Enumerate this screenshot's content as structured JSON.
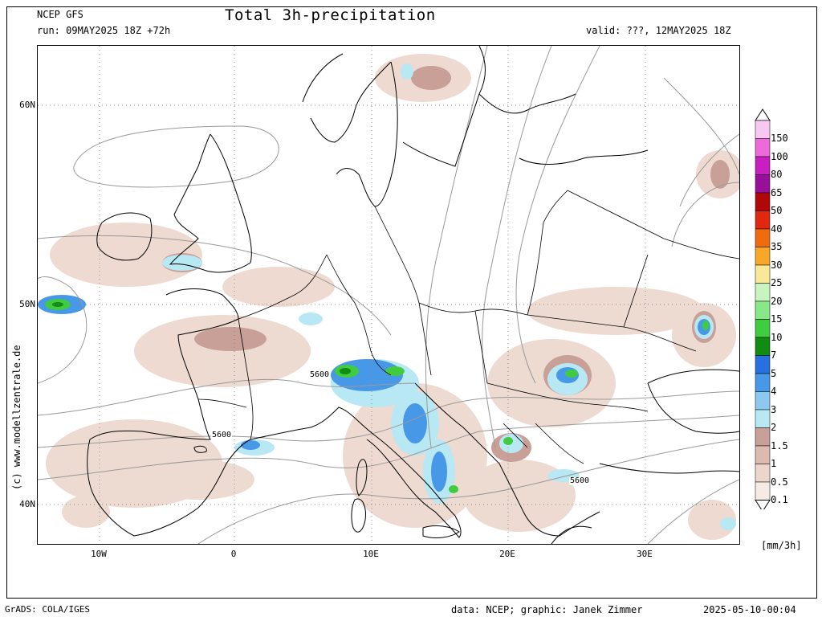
{
  "header": {
    "model": "NCEP GFS",
    "run": "run: 09MAY2025 18Z +72h",
    "title": "Total 3h-precipitation",
    "valid": "valid: ???, 12MAY2025 18Z"
  },
  "axes": {
    "lat_labels": [
      "60N",
      "50N",
      "40N"
    ],
    "lon_labels": [
      "10W",
      "0",
      "10E",
      "20E",
      "30E"
    ]
  },
  "contour_labels": [
    "5600",
    "5600",
    "5600"
  ],
  "credit": "(c) www.modellzentrale.de",
  "colorbar": {
    "unit": "[mm/3h]",
    "levels": [
      "150",
      "100",
      "80",
      "65",
      "50",
      "40",
      "35",
      "30",
      "25",
      "20",
      "15",
      "10",
      "7",
      "5",
      "4",
      "3",
      "2",
      "1.5",
      "1",
      "0.5",
      "0.1"
    ],
    "colors": [
      "#f7c8f0",
      "#ec6bd8",
      "#c91ec0",
      "#98109a",
      "#b00808",
      "#e02810",
      "#f06a10",
      "#f8a828",
      "#f8e898",
      "#c8f4c0",
      "#88e888",
      "#40cc40",
      "#108c10",
      "#2870e0",
      "#4898e8",
      "#8cc8f0",
      "#b8e8f4",
      "#c8a098",
      "#dcbab0",
      "#ecd6cc",
      "#f6ebe4"
    ]
  },
  "footer": {
    "left": "GrADS: COLA/IGES",
    "center": "data: NCEP; graphic: Janek Zimmer",
    "right": "2025-05-10-00:04"
  }
}
